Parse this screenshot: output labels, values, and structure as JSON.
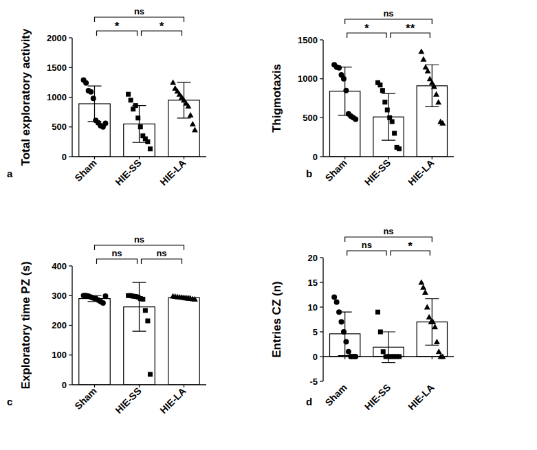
{
  "chart_data": [
    {
      "type": "bar",
      "panel": "a",
      "y_label": "Total exploratory activity",
      "categories": [
        "Sham",
        "HIE-SS",
        "HIE-LA"
      ],
      "values": [
        890,
        550,
        950
      ],
      "errors": [
        300,
        310,
        300
      ],
      "points": [
        [
          1290,
          1240,
          1110,
          1090,
          980,
          610,
          570,
          520,
          500,
          560
        ],
        [
          1050,
          950,
          800,
          860,
          650,
          500,
          350,
          300,
          250,
          130
        ],
        [
          1250,
          1150,
          1100,
          1050,
          1000,
          950,
          900,
          850,
          700,
          550,
          450
        ]
      ],
      "marker": [
        "circle",
        "square",
        "triangle"
      ],
      "color": "#ffffff",
      "ylim": [
        0,
        2000
      ],
      "yticks": [
        0,
        500,
        1000,
        1500,
        2000
      ],
      "annotations": [
        {
          "text": "*",
          "from": 0,
          "to": 1
        },
        {
          "text": "*",
          "from": 1,
          "to": 2
        },
        {
          "text": "ns",
          "from": 0,
          "to": 2
        }
      ]
    },
    {
      "type": "bar",
      "panel": "b",
      "y_label": "Thigmotaxis",
      "categories": [
        "Sham",
        "HIE-SS",
        "HIE-LA"
      ],
      "values": [
        840,
        510,
        910
      ],
      "errors": [
        310,
        300,
        270
      ],
      "points": [
        [
          1180,
          1150,
          1140,
          1050,
          1000,
          850,
          550,
          520,
          500,
          480
        ],
        [
          950,
          920,
          850,
          700,
          600,
          500,
          450,
          300,
          120,
          100
        ],
        [
          1350,
          1250,
          1150,
          1100,
          1000,
          950,
          900,
          800,
          700,
          450,
          430
        ]
      ],
      "marker": [
        "circle",
        "square",
        "triangle"
      ],
      "color": "#ffffff",
      "ylim": [
        0,
        1500
      ],
      "yticks": [
        0,
        500,
        1000,
        1500
      ],
      "annotations": [
        {
          "text": "*",
          "from": 0,
          "to": 1
        },
        {
          "text": "**",
          "from": 1,
          "to": 2
        },
        {
          "text": "ns",
          "from": 0,
          "to": 2
        }
      ]
    },
    {
      "type": "bar",
      "panel": "c",
      "y_label": "Exploratory time PZ (s)",
      "categories": [
        "Sham",
        "HIE-SS",
        "HIE-LA"
      ],
      "values": [
        290,
        262,
        293
      ],
      "errors": [
        10,
        82,
        5
      ],
      "points": [
        [
          300,
          300,
          298,
          295,
          292,
          290,
          285,
          280,
          275,
          298
        ],
        [
          300,
          300,
          298,
          297,
          295,
          290,
          288,
          250,
          215,
          35
        ],
        [
          298,
          297,
          296,
          295,
          294,
          293,
          292,
          291,
          290,
          289,
          288
        ]
      ],
      "marker": [
        "circle",
        "square",
        "triangle"
      ],
      "color": "#ffffff",
      "ylim": [
        0,
        400
      ],
      "yticks": [
        0,
        100,
        200,
        300,
        400
      ],
      "annotations": [
        {
          "text": "ns",
          "from": 0,
          "to": 1
        },
        {
          "text": "ns",
          "from": 1,
          "to": 2
        },
        {
          "text": "ns",
          "from": 0,
          "to": 2
        }
      ]
    },
    {
      "type": "bar",
      "panel": "d",
      "y_label": "Entries CZ  (n)",
      "categories": [
        "Sham",
        "HIE-SS",
        "HIE-LA"
      ],
      "values": [
        4.6,
        1.9,
        7.0
      ],
      "errors": [
        4.4,
        3.1,
        4.7
      ],
      "points": [
        [
          12,
          11,
          9,
          7,
          5,
          3,
          1,
          0,
          0,
          0
        ],
        [
          9,
          5,
          1,
          0,
          0,
          0,
          0,
          0,
          0
        ],
        [
          15,
          14,
          13,
          10,
          8,
          7,
          7,
          6,
          3,
          1,
          0,
          0
        ]
      ],
      "marker": [
        "circle",
        "square",
        "triangle"
      ],
      "color": "#ffffff",
      "ylim": [
        -5,
        20
      ],
      "yticks": [
        -5,
        0,
        5,
        10,
        15,
        20
      ],
      "annotations": [
        {
          "text": "ns",
          "from": 0,
          "to": 1
        },
        {
          "text": "*",
          "from": 1,
          "to": 2
        },
        {
          "text": "ns",
          "from": 0,
          "to": 2
        }
      ]
    }
  ]
}
